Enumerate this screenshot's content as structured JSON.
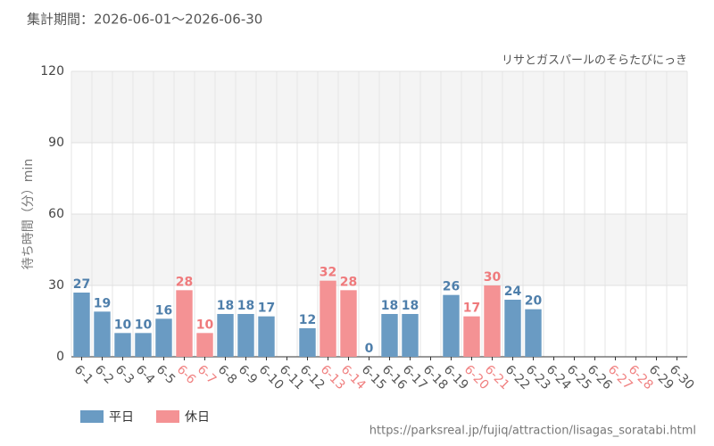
{
  "chart_data": {
    "type": "bar",
    "title": "集計期間：2026-06-01～2026-06-30",
    "subtitle": "リサとガスパールのそらたびにっき",
    "y_label": "待ち時間（分）min",
    "source": "https://parksreal.jp/fujiq/attraction/lisagas_soratabi.html",
    "categories": [
      "6-1",
      "6-2",
      "6-3",
      "6-4",
      "6-5",
      "6-6",
      "6-7",
      "6-8",
      "6-9",
      "6-10",
      "6-11",
      "6-12",
      "6-13",
      "6-14",
      "6-15",
      "6-16",
      "6-17",
      "6-18",
      "6-19",
      "6-20",
      "6-21",
      "6-22",
      "6-23",
      "6-24",
      "6-25",
      "6-26",
      "6-27",
      "6-28",
      "6-29",
      "6-30"
    ],
    "category_label_colors": [
      "#555",
      "#555",
      "#555",
      "#555",
      "#555",
      "#f08080",
      "#f08080",
      "#555",
      "#555",
      "#555",
      "#555",
      "#555",
      "#f08080",
      "#f08080",
      "#555",
      "#555",
      "#555",
      "#555",
      "#555",
      "#f08080",
      "#f08080",
      "#555",
      "#555",
      "#555",
      "#555",
      "#555",
      "#f08080",
      "#f08080",
      "#555",
      "#555"
    ],
    "series": [
      {
        "name": "平日",
        "color": "#6a9bc3",
        "label_color": "#4f7fab",
        "values": [
          27,
          19,
          10,
          10,
          16,
          null,
          null,
          18,
          18,
          17,
          null,
          12,
          null,
          null,
          0,
          18,
          18,
          null,
          26,
          null,
          null,
          24,
          20,
          null,
          null,
          null,
          null,
          null,
          null,
          null
        ]
      },
      {
        "name": "休日",
        "color": "#f49294",
        "label_color": "#ef7a7c",
        "values": [
          null,
          null,
          null,
          null,
          null,
          28,
          10,
          null,
          null,
          null,
          null,
          null,
          32,
          28,
          null,
          null,
          null,
          null,
          null,
          17,
          30,
          null,
          null,
          null,
          null,
          null,
          null,
          null,
          null,
          null
        ]
      }
    ],
    "ylim": [
      0,
      120
    ],
    "yticks": [
      0,
      30,
      60,
      90,
      120
    ],
    "grid": true
  }
}
